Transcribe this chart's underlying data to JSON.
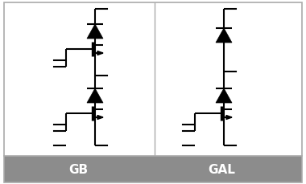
{
  "background_color": "#ffffff",
  "border_color": "#aaaaaa",
  "footer_color": "#8c8c8c",
  "footer_text_color": "#ffffff",
  "label_gb": "GB",
  "label_gal": "GAL",
  "label_fontsize": 11,
  "lw": 1.5,
  "fig_width": 3.8,
  "fig_height": 2.29,
  "dpi": 100,
  "cr": 0.012
}
